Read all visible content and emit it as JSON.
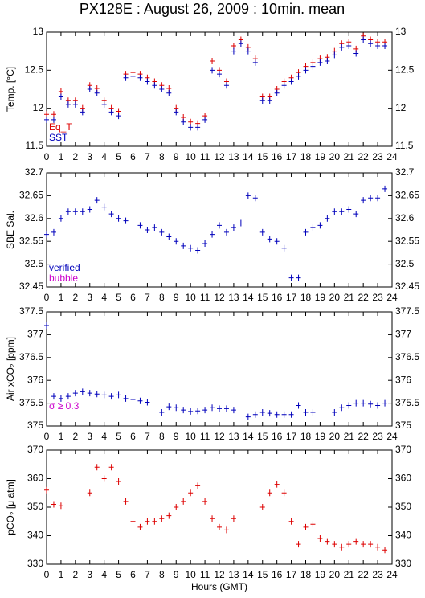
{
  "title": "PX128E : August 26, 2009 : 10min. mean",
  "chart_data": [
    {
      "type": "scatter",
      "ylabel": "Temp. [°C]",
      "x": [
        0,
        0.5,
        1,
        1.5,
        2,
        2.5,
        3,
        3.5,
        4,
        4.5,
        5,
        5.5,
        6,
        6.5,
        7,
        7.5,
        8,
        8.5,
        9,
        9.5,
        10,
        10.5,
        11,
        11.5,
        12,
        12.5,
        13,
        13.5,
        14,
        14.5,
        15,
        15.5,
        16,
        16.5,
        17,
        17.5,
        18,
        18.5,
        19,
        19.5,
        20,
        20.5,
        21,
        21.5,
        22,
        22.5,
        23,
        23.5
      ],
      "xlim": [
        0,
        24
      ],
      "xticks": [
        0,
        1,
        2,
        3,
        4,
        5,
        6,
        7,
        8,
        9,
        10,
        11,
        12,
        13,
        14,
        15,
        16,
        17,
        18,
        19,
        20,
        21,
        22,
        23,
        24
      ],
      "ylim": [
        11.5,
        13
      ],
      "yticks": [
        11.5,
        12,
        12.5,
        13
      ],
      "series": [
        {
          "name": "Eq_T",
          "color": "#dd0000",
          "values": [
            11.92,
            11.92,
            12.22,
            12.1,
            12.1,
            12.0,
            12.3,
            12.26,
            12.1,
            12.0,
            11.96,
            12.45,
            12.47,
            12.45,
            12.4,
            12.35,
            12.3,
            12.26,
            12.0,
            11.88,
            11.82,
            11.8,
            11.9,
            12.62,
            12.5,
            12.35,
            12.82,
            12.9,
            12.8,
            12.65,
            12.15,
            12.15,
            12.25,
            12.35,
            12.4,
            12.47,
            12.55,
            12.6,
            12.65,
            12.67,
            12.75,
            12.85,
            12.87,
            12.78,
            12.95,
            12.9,
            12.87,
            12.87
          ]
        },
        {
          "name": "SST",
          "color": "#0000bb",
          "values": [
            11.85,
            11.85,
            12.15,
            12.05,
            12.05,
            11.95,
            12.25,
            12.2,
            12.05,
            11.95,
            11.9,
            12.4,
            12.42,
            12.4,
            12.35,
            12.3,
            12.25,
            12.2,
            11.95,
            11.82,
            11.75,
            11.75,
            11.85,
            12.5,
            12.45,
            12.3,
            12.75,
            12.85,
            12.75,
            12.6,
            12.1,
            12.1,
            12.2,
            12.3,
            12.35,
            12.42,
            12.5,
            12.55,
            12.6,
            12.62,
            12.7,
            12.8,
            12.82,
            12.72,
            12.9,
            12.85,
            12.82,
            12.82
          ]
        }
      ]
    },
    {
      "type": "scatter",
      "ylabel": "SBE Sal.",
      "x": [
        0,
        0.5,
        1,
        1.5,
        2,
        2.5,
        3,
        3.5,
        4,
        4.5,
        5,
        5.5,
        6,
        6.5,
        7,
        7.5,
        8,
        8.5,
        9,
        9.5,
        10,
        10.5,
        11,
        11.5,
        12,
        12.5,
        13,
        13.5,
        14,
        14.5,
        15,
        15.5,
        16,
        16.5,
        17,
        17.5,
        18,
        18.5,
        19,
        19.5,
        20,
        20.5,
        21,
        21.5,
        22,
        22.5,
        23,
        23.5
      ],
      "xlim": [
        0,
        24
      ],
      "xticks": [
        0,
        1,
        2,
        3,
        4,
        5,
        6,
        7,
        8,
        9,
        10,
        11,
        12,
        13,
        14,
        15,
        16,
        17,
        18,
        19,
        20,
        21,
        22,
        23,
        24
      ],
      "ylim": [
        32.45,
        32.7
      ],
      "yticks": [
        32.45,
        32.5,
        32.55,
        32.6,
        32.65,
        32.7
      ],
      "series": [
        {
          "name": "verified",
          "color": "#0000bb",
          "values": [
            32.565,
            32.57,
            32.6,
            32.615,
            32.615,
            32.615,
            32.62,
            32.64,
            32.625,
            32.61,
            32.6,
            32.595,
            32.59,
            32.585,
            32.575,
            32.58,
            32.57,
            32.56,
            32.55,
            32.54,
            32.535,
            32.53,
            32.545,
            32.565,
            32.585,
            32.57,
            32.58,
            32.59,
            32.65,
            32.645,
            32.57,
            32.555,
            32.55,
            32.535,
            32.47,
            32.47,
            32.57,
            32.58,
            32.585,
            32.6,
            32.615,
            32.615,
            32.62,
            32.61,
            32.64,
            32.645,
            32.645,
            32.665
          ]
        },
        {
          "name": "bubble",
          "color": "#cc00cc",
          "values": [
            null,
            null,
            null,
            null,
            null,
            null,
            null,
            null,
            null,
            null,
            null,
            null,
            null,
            null,
            null,
            null,
            null,
            null,
            null,
            null,
            null,
            null,
            null,
            null,
            null,
            null,
            null,
            null,
            null,
            null,
            null,
            null,
            null,
            null,
            null,
            null,
            null,
            null,
            null,
            null,
            null,
            null,
            null,
            null,
            null,
            null,
            null,
            null
          ]
        }
      ]
    },
    {
      "type": "scatter",
      "ylabel": "Air xCO₂ [ppm]",
      "annotation": "σ ≥ 0.3",
      "annotation_color": "#cc00cc",
      "x": [
        0,
        0.5,
        1,
        1.5,
        2,
        2.5,
        3,
        3.5,
        4,
        4.5,
        5,
        5.5,
        6,
        6.5,
        7,
        7.5,
        8,
        8.5,
        9,
        9.5,
        10,
        10.5,
        11,
        11.5,
        12,
        12.5,
        13,
        13.5,
        14,
        14.5,
        15,
        15.5,
        16,
        16.5,
        17,
        17.5,
        18,
        18.5,
        19,
        19.5,
        20,
        20.5,
        21,
        21.5,
        22,
        22.5,
        23,
        23.5
      ],
      "xlim": [
        0,
        24
      ],
      "xticks": [
        0,
        1,
        2,
        3,
        4,
        5,
        6,
        7,
        8,
        9,
        10,
        11,
        12,
        13,
        14,
        15,
        16,
        17,
        18,
        19,
        20,
        21,
        22,
        23,
        24
      ],
      "ylim": [
        375,
        377.5
      ],
      "yticks": [
        375,
        375.5,
        376,
        376.5,
        377,
        377.5
      ],
      "series": [
        {
          "color": "#0000bb",
          "values": [
            377.2,
            375.65,
            375.6,
            375.65,
            375.72,
            375.75,
            375.72,
            375.7,
            375.68,
            375.65,
            375.68,
            375.6,
            375.58,
            375.55,
            375.52,
            null,
            375.3,
            375.42,
            375.4,
            375.35,
            375.32,
            375.33,
            375.35,
            375.4,
            375.38,
            375.38,
            375.35,
            null,
            375.2,
            375.25,
            375.3,
            375.28,
            375.25,
            375.25,
            375.25,
            375.45,
            375.3,
            375.3,
            null,
            null,
            375.3,
            375.4,
            375.45,
            375.5,
            375.5,
            375.48,
            375.45,
            375.5
          ]
        }
      ]
    },
    {
      "type": "scatter",
      "ylabel": "pCO₂ [μ atm]",
      "xlabel": "Hours (GMT)",
      "x": [
        0,
        0.5,
        1,
        1.5,
        2,
        2.5,
        3,
        3.5,
        4,
        4.5,
        5,
        5.5,
        6,
        6.5,
        7,
        7.5,
        8,
        8.5,
        9,
        9.5,
        10,
        10.5,
        11,
        11.5,
        12,
        12.5,
        13,
        13.5,
        14,
        14.5,
        15,
        15.5,
        16,
        16.5,
        17,
        17.5,
        18,
        18.5,
        19,
        19.5,
        20,
        20.5,
        21,
        21.5,
        22,
        22.5,
        23,
        23.5
      ],
      "xlim": [
        0,
        24
      ],
      "xticks": [
        0,
        1,
        2,
        3,
        4,
        5,
        6,
        7,
        8,
        9,
        10,
        11,
        12,
        13,
        14,
        15,
        16,
        17,
        18,
        19,
        20,
        21,
        22,
        23,
        24
      ],
      "ylim": [
        330,
        370
      ],
      "yticks": [
        330,
        340,
        350,
        360,
        370
      ],
      "series": [
        {
          "color": "#dd0000",
          "values": [
            356,
            351,
            350.5,
            null,
            null,
            null,
            355,
            364,
            360,
            364,
            359,
            352,
            345,
            343,
            345,
            345,
            346,
            347,
            350,
            352,
            355,
            357.5,
            352,
            346,
            343,
            342,
            346,
            null,
            null,
            null,
            350,
            355,
            358,
            355,
            345,
            337,
            343,
            344,
            339,
            338,
            337,
            336,
            337,
            338,
            337,
            337,
            336,
            335
          ]
        }
      ]
    }
  ]
}
